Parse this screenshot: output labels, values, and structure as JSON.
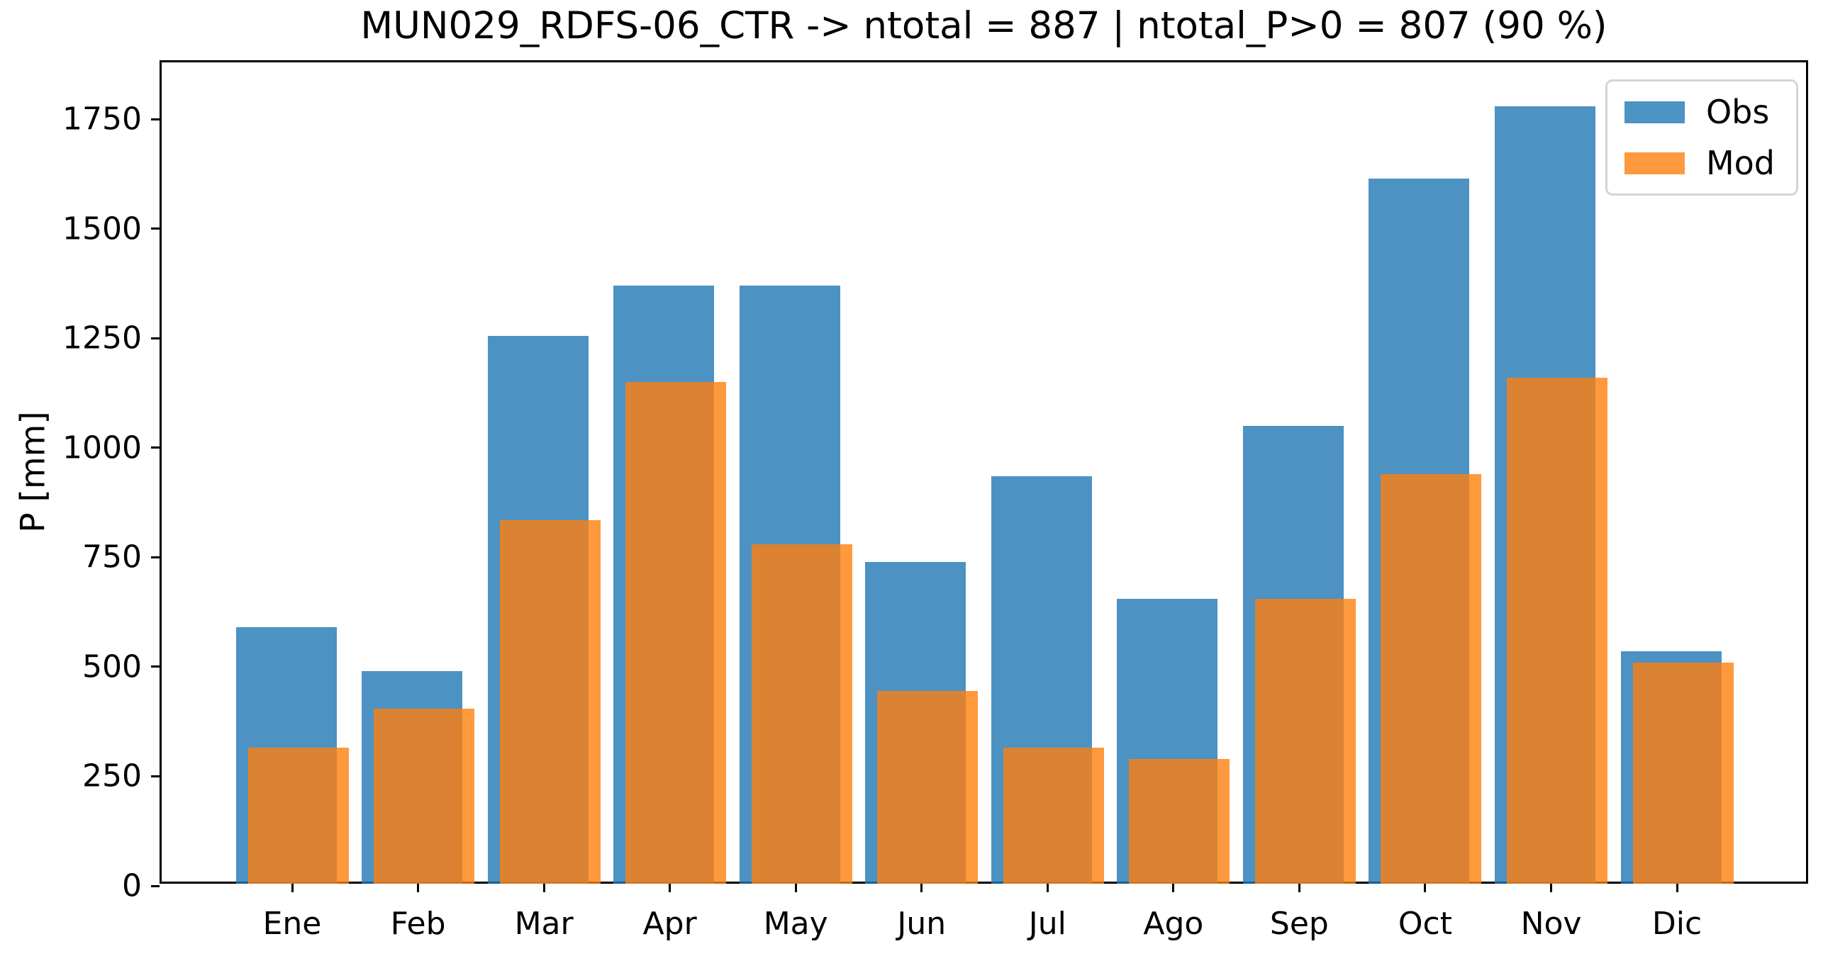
{
  "figure": {
    "title": "MUN029_RDFS-06_CTR -> ntotal = 887 | ntotal_P>0 = 807 (90 %)"
  },
  "chart_data": {
    "type": "bar",
    "title": "MUN029_RDFS-06_CTR -> ntotal = 887 | ntotal_P>0 = 807 (90 %)",
    "xlabel": "",
    "ylabel": "P [mm]",
    "categories": [
      "Ene",
      "Feb",
      "Mar",
      "Apr",
      "May",
      "Jun",
      "Jul",
      "Ago",
      "Sep",
      "Oct",
      "Nov",
      "Dic"
    ],
    "series": [
      {
        "name": "Obs",
        "color": "#1f77b4",
        "alpha": 0.8,
        "values": [
          585,
          485,
          1250,
          1365,
          1365,
          735,
          930,
          650,
          1045,
          1610,
          1775,
          530
        ]
      },
      {
        "name": "Mod",
        "color": "#ff7f0e",
        "alpha": 0.8,
        "values": [
          310,
          400,
          830,
          1145,
          775,
          440,
          310,
          285,
          650,
          935,
          1155,
          505
        ]
      }
    ],
    "yticks": [
      0,
      250,
      500,
      750,
      1000,
      1250,
      1500,
      1750
    ],
    "ylim": [
      0,
      1880
    ],
    "grid": false,
    "legend_position": "upper right",
    "bars_overlap": "Mod drawn on top of Obs, shifted slightly right, both semi-transparent"
  }
}
